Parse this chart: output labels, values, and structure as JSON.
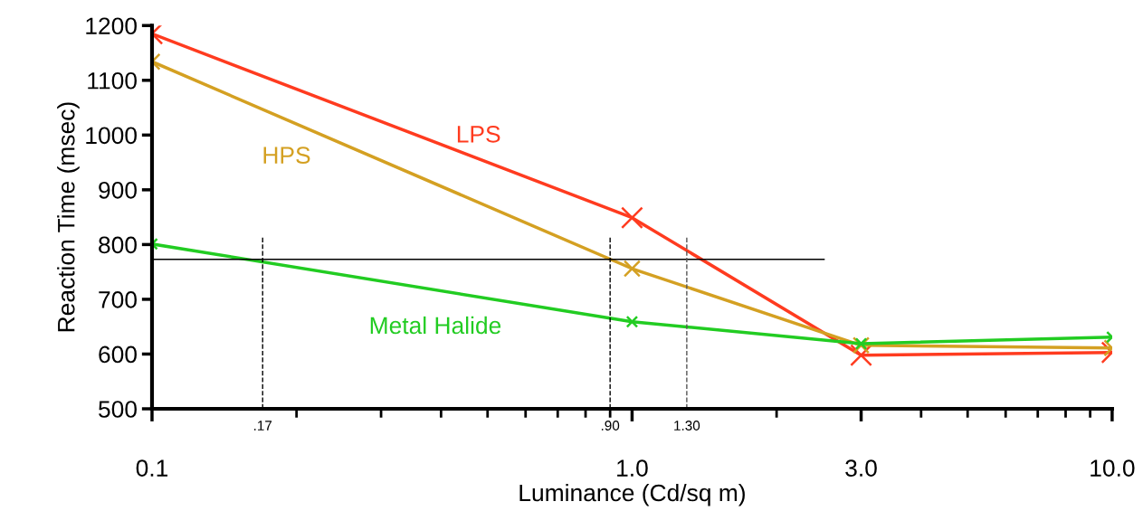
{
  "chart_data": {
    "type": "line",
    "xlabel": "Luminance (Cd/sq m)",
    "ylabel": "Reaction Time (msec)",
    "log": "x",
    "x": [
      0.1,
      1.0,
      3.0,
      10.0
    ],
    "series": [
      {
        "name": "LPS",
        "color": "#ff3b1f",
        "values": [
          1185,
          849,
          598,
          603
        ]
      },
      {
        "name": "HPS",
        "color": "#d4a022",
        "values": [
          1134,
          756,
          616,
          611
        ]
      },
      {
        "name": "Metal Halide",
        "color": "#22cc22",
        "values": [
          801,
          659,
          619,
          631
        ]
      }
    ],
    "xlim": [
      0.1,
      10.0
    ],
    "xticks": [
      {
        "value": 0.1,
        "label": "0.1"
      },
      {
        "value": 1.0,
        "label": "1.0"
      },
      {
        "value": 3.0,
        "label": "3.0"
      },
      {
        "value": 10.0,
        "label": "10.0"
      }
    ],
    "ylim": [
      500,
      1200
    ],
    "yticks": [
      500,
      600,
      700,
      800,
      900,
      1000,
      1100,
      1200
    ],
    "ref_lines": [
      {
        "axis": "y",
        "value": 773,
        "color": "#000000",
        "line_style": "solid"
      },
      {
        "axis": "x",
        "value": 0.17,
        "label": ".17",
        "color": "#000000",
        "line_style": "dashed"
      },
      {
        "axis": "x",
        "value": 0.9,
        "label": ".90",
        "color": "#000000",
        "line_style": "dashed"
      },
      {
        "axis": "x",
        "value": 1.3,
        "label": "1.30",
        "color": "#555555",
        "line_style": "dashed"
      }
    ],
    "marker": "cross",
    "line_style": "solid",
    "grid": false,
    "legend": false
  }
}
